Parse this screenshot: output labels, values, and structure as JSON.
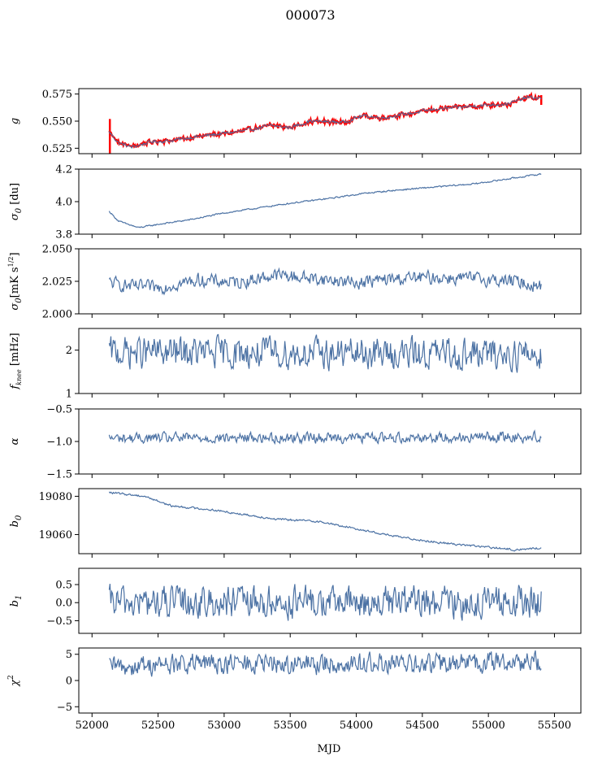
{
  "figure": {
    "title": "000073"
  },
  "colors": {
    "series": "#4c72a4",
    "fit": "#ff0000",
    "axis": "#000000"
  },
  "chart_data": {
    "type": "line",
    "shared_x": {
      "label": "MJD",
      "lim": [
        51900,
        55700
      ],
      "ticks": [
        52000,
        52500,
        53000,
        53500,
        54000,
        54500,
        55000,
        55500
      ],
      "tick_labels": [
        "52000",
        "52500",
        "53000",
        "53500",
        "54000",
        "54500",
        "55000",
        "55500"
      ]
    },
    "x_range": [
      52130,
      55400
    ],
    "panels": [
      {
        "id": "g",
        "ylabel_main": "g",
        "ylabel_sub": "",
        "ylabel_rest": "",
        "ylim": [
          0.52,
          0.58
        ],
        "yticks": [
          0.525,
          0.55,
          0.575
        ],
        "ytick_labels": [
          "0.525",
          "0.550",
          "0.575"
        ],
        "trend": [
          [
            52130,
            0.54
          ],
          [
            52200,
            0.53
          ],
          [
            52300,
            0.526
          ],
          [
            52450,
            0.531
          ],
          [
            52600,
            0.532
          ],
          [
            52750,
            0.535
          ],
          [
            52950,
            0.538
          ],
          [
            53150,
            0.541
          ],
          [
            53350,
            0.546
          ],
          [
            53500,
            0.544
          ],
          [
            53650,
            0.55
          ],
          [
            53900,
            0.549
          ],
          [
            54050,
            0.555
          ],
          [
            54200,
            0.553
          ],
          [
            54400,
            0.557
          ],
          [
            54600,
            0.561
          ],
          [
            54800,
            0.563
          ],
          [
            55000,
            0.565
          ],
          [
            55150,
            0.566
          ],
          [
            55300,
            0.572
          ],
          [
            55400,
            0.571
          ]
        ],
        "noise": 0.0009,
        "fit_series": {
          "name": "fit",
          "noise": 0.0012,
          "spikes": [
            [
              52135,
              0.515,
              0.552
            ],
            [
              55400,
              0.565,
              0.574
            ]
          ]
        }
      },
      {
        "id": "sigma0",
        "ylabel_main": "σ",
        "ylabel_sub": "0",
        "ylabel_rest": " [du]",
        "ylim": [
          3.8,
          4.2
        ],
        "yticks": [
          3.8,
          4.0,
          4.2
        ],
        "ytick_labels": [
          "3.8",
          "4.0",
          "4.2"
        ],
        "trend": [
          [
            52130,
            3.94
          ],
          [
            52200,
            3.88
          ],
          [
            52350,
            3.84
          ],
          [
            52500,
            3.86
          ],
          [
            52750,
            3.89
          ],
          [
            53000,
            3.93
          ],
          [
            53250,
            3.96
          ],
          [
            53500,
            3.99
          ],
          [
            53800,
            4.02
          ],
          [
            54050,
            4.05
          ],
          [
            54300,
            4.07
          ],
          [
            54600,
            4.09
          ],
          [
            54900,
            4.11
          ],
          [
            55150,
            4.14
          ],
          [
            55400,
            4.17
          ]
        ],
        "noise": 0.0025
      },
      {
        "id": "sigma0_mks",
        "ylabel_main": "σ",
        "ylabel_sub": "0",
        "ylabel_rest": "[mK s",
        "ylabel_sup": "1/2",
        "ylabel_end": "]",
        "ylim": [
          2.0,
          2.05
        ],
        "yticks": [
          2.0,
          2.025,
          2.05
        ],
        "ytick_labels": [
          "2.000",
          "2.025",
          "2.050"
        ],
        "trend": [
          [
            52130,
            2.024
          ],
          [
            52300,
            2.021
          ],
          [
            52500,
            2.02
          ],
          [
            52800,
            2.026
          ],
          [
            53100,
            2.024
          ],
          [
            53400,
            2.03
          ],
          [
            53700,
            2.027
          ],
          [
            54000,
            2.024
          ],
          [
            54300,
            2.027
          ],
          [
            54600,
            2.028
          ],
          [
            54900,
            2.027
          ],
          [
            55200,
            2.025
          ],
          [
            55400,
            2.021
          ]
        ],
        "noise": 0.0028
      },
      {
        "id": "fknee",
        "ylabel_main": "f",
        "ylabel_sub": "knee",
        "ylabel_rest": " [mHz]",
        "ylim": [
          1.0,
          2.5
        ],
        "yticks": [
          1,
          2
        ],
        "ytick_labels": [
          "1",
          "2"
        ],
        "trend": [
          [
            52130,
            1.95
          ],
          [
            55400,
            1.9
          ]
        ],
        "noise": 0.2
      },
      {
        "id": "alpha",
        "ylabel_main": "α",
        "ylabel_sub": "",
        "ylabel_rest": "",
        "ylim": [
          -1.5,
          -0.5
        ],
        "yticks": [
          -1.5,
          -1.0,
          -0.5
        ],
        "ytick_labels": [
          "−1.5",
          "−1.0",
          "−0.5"
        ],
        "trend": [
          [
            52130,
            -0.95
          ],
          [
            55400,
            -0.93
          ]
        ],
        "noise": 0.045
      },
      {
        "id": "b0",
        "ylabel_main": "b",
        "ylabel_sub": "0",
        "ylabel_rest": "",
        "ylim": [
          19050,
          19084
        ],
        "yticks": [
          19060,
          19080
        ],
        "ytick_labels": [
          "19060",
          "19080"
        ],
        "trend": [
          [
            52130,
            19082
          ],
          [
            52400,
            19080
          ],
          [
            52600,
            19075
          ],
          [
            52900,
            19073
          ],
          [
            53100,
            19071
          ],
          [
            53400,
            19068
          ],
          [
            53700,
            19067
          ],
          [
            54000,
            19063
          ],
          [
            54300,
            19059
          ],
          [
            54600,
            19056
          ],
          [
            54900,
            19054
          ],
          [
            55200,
            19052
          ],
          [
            55400,
            19053
          ]
        ],
        "noise": 0.3
      },
      {
        "id": "b1",
        "ylabel_main": "b",
        "ylabel_sub": "1",
        "ylabel_rest": "",
        "ylim": [
          -0.85,
          0.95
        ],
        "yticks": [
          -0.5,
          0.0,
          0.5
        ],
        "ytick_labels": [
          "−0.5",
          "0.0",
          "0.5"
        ],
        "trend": [
          [
            52130,
            0.0
          ],
          [
            55400,
            0.0
          ]
        ],
        "noise": 0.25
      },
      {
        "id": "chi2",
        "ylabel_main": "χ",
        "ylabel_sub": "",
        "ylabel_rest": "",
        "ylabel_sup": "2",
        "ylim": [
          -6.2,
          6.2
        ],
        "yticks": [
          -5,
          0,
          5
        ],
        "ytick_labels": [
          "−5",
          "0",
          "5"
        ],
        "trend": [
          [
            52130,
            2.5
          ],
          [
            52500,
            3.0
          ],
          [
            53000,
            3.2
          ],
          [
            53500,
            3.0
          ],
          [
            54000,
            3.3
          ],
          [
            54500,
            3.0
          ],
          [
            55000,
            3.5
          ],
          [
            55400,
            3.6
          ]
        ],
        "noise": 1.1
      }
    ]
  }
}
